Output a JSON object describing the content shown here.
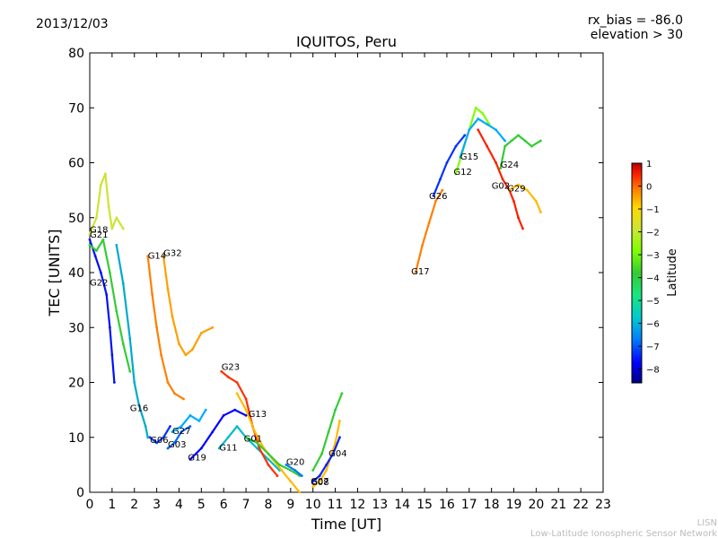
{
  "header": {
    "date": "2013/12/03",
    "title": "IQUITOS, Peru",
    "rx_bias": "rx_bias = -86.0",
    "elevation": "elevation > 30"
  },
  "footer": {
    "line1": "LISN",
    "line2": "Low-Latitude Ionospheric Sensor Network"
  },
  "colorbar": {
    "label": "Latitude",
    "ticks": [
      "1",
      "0",
      "−1",
      "−2",
      "−3",
      "−4",
      "−5",
      "−6",
      "−7",
      "−8"
    ],
    "tick_values": [
      1,
      0,
      -1,
      -2,
      -3,
      -4,
      -5,
      -6,
      -7,
      -8
    ],
    "range": [
      -8.6,
      1.0
    ],
    "colormap": [
      "#00007f",
      "#0000ff",
      "#007fff",
      "#00cccc",
      "#19e57f",
      "#33cc33",
      "#7fff00",
      "#cce533",
      "#ffd700",
      "#ff7f00",
      "#ff2000",
      "#b40000"
    ]
  },
  "chart_data": {
    "type": "scatter",
    "title": "IQUITOS, Peru",
    "xlabel": "Time [UT]",
    "ylabel": "TEC [UNITS]",
    "xlim": [
      0,
      23
    ],
    "ylim": [
      0,
      80
    ],
    "x_ticks": [
      "0",
      "1",
      "2",
      "3",
      "4",
      "5",
      "6",
      "7",
      "8",
      "9",
      "10",
      "11",
      "12",
      "13",
      "14",
      "15",
      "16",
      "17",
      "18",
      "19",
      "20",
      "21",
      "22",
      "23"
    ],
    "y_ticks": [
      "0",
      "10",
      "20",
      "30",
      "40",
      "50",
      "60",
      "70",
      "80"
    ],
    "grid": false,
    "series": [
      {
        "name": "G22",
        "color": "#0010ff",
        "points": [
          [
            0,
            46
          ],
          [
            0.25,
            43
          ],
          [
            0.5,
            40
          ],
          [
            0.75,
            36
          ],
          [
            0.9,
            30
          ],
          [
            1.0,
            25
          ],
          [
            1.1,
            20
          ]
        ]
      },
      {
        "name": "G18",
        "color": "#cce533",
        "points": [
          [
            0,
            47
          ],
          [
            0.3,
            50
          ],
          [
            0.5,
            56
          ],
          [
            0.7,
            58
          ],
          [
            0.85,
            52
          ],
          [
            1.0,
            48
          ],
          [
            1.2,
            50
          ],
          [
            1.5,
            48
          ]
        ]
      },
      {
        "name": "G21",
        "color": "#33cc33",
        "points": [
          [
            0,
            45
          ],
          [
            0.3,
            44
          ],
          [
            0.6,
            46
          ],
          [
            0.9,
            40
          ],
          [
            1.2,
            33
          ],
          [
            1.5,
            27
          ],
          [
            1.8,
            22
          ]
        ]
      },
      {
        "name": "G16",
        "color": "#00aacc",
        "points": [
          [
            1.2,
            45
          ],
          [
            1.5,
            38
          ],
          [
            1.8,
            28
          ],
          [
            2.0,
            20
          ],
          [
            2.2,
            16
          ],
          [
            2.5,
            12
          ],
          [
            2.6,
            10
          ]
        ]
      },
      {
        "name": "G14",
        "color": "#ff7f00",
        "points": [
          [
            2.6,
            43
          ],
          [
            2.8,
            36
          ],
          [
            3.0,
            30
          ],
          [
            3.2,
            25
          ],
          [
            3.5,
            20
          ],
          [
            3.8,
            18
          ],
          [
            4.2,
            17
          ]
        ]
      },
      {
        "name": "G32",
        "color": "#ff9f00",
        "points": [
          [
            3.3,
            43
          ],
          [
            3.5,
            37
          ],
          [
            3.7,
            32
          ],
          [
            4.0,
            27
          ],
          [
            4.3,
            25
          ],
          [
            4.6,
            26
          ],
          [
            5.0,
            29
          ],
          [
            5.5,
            30
          ]
        ]
      },
      {
        "name": "G06",
        "color": "#0033ff",
        "points": [
          [
            2.7,
            10
          ],
          [
            3.0,
            9
          ],
          [
            3.3,
            10
          ],
          [
            3.6,
            12
          ]
        ]
      },
      {
        "name": "G03",
        "color": "#0066ff",
        "points": [
          [
            3.5,
            8
          ],
          [
            3.8,
            9
          ],
          [
            4.1,
            11
          ],
          [
            4.5,
            12
          ]
        ]
      },
      {
        "name": "G27",
        "color": "#00aaff",
        "points": [
          [
            3.7,
            11
          ],
          [
            4.1,
            12
          ],
          [
            4.5,
            14
          ],
          [
            4.9,
            13
          ],
          [
            5.2,
            15
          ]
        ]
      },
      {
        "name": "G19",
        "color": "#0000ff",
        "points": [
          [
            4.5,
            6
          ],
          [
            5.0,
            8
          ],
          [
            5.5,
            11
          ],
          [
            6.0,
            14
          ],
          [
            6.5,
            15
          ],
          [
            7.0,
            14
          ]
        ]
      },
      {
        "name": "G11",
        "color": "#00bbcc",
        "points": [
          [
            5.8,
            8
          ],
          [
            6.2,
            10
          ],
          [
            6.6,
            12
          ],
          [
            7.0,
            10
          ],
          [
            7.5,
            8
          ],
          [
            8.0,
            6
          ],
          [
            8.5,
            4
          ]
        ]
      },
      {
        "name": "G23",
        "color": "#ff3000",
        "points": [
          [
            5.9,
            22
          ],
          [
            6.2,
            21
          ],
          [
            6.6,
            20
          ],
          [
            7.0,
            17
          ],
          [
            7.3,
            12
          ],
          [
            7.6,
            8
          ],
          [
            8.0,
            5
          ],
          [
            8.4,
            3
          ]
        ]
      },
      {
        "name": "G13",
        "color": "#ffbb00",
        "points": [
          [
            6.6,
            18
          ],
          [
            7.0,
            15
          ],
          [
            7.4,
            11
          ],
          [
            7.8,
            8
          ],
          [
            8.2,
            6
          ],
          [
            8.6,
            4
          ],
          [
            9.0,
            2
          ],
          [
            9.4,
            0
          ]
        ]
      },
      {
        "name": "G01",
        "color": "#33cc33",
        "points": [
          [
            7.0,
            10
          ],
          [
            7.5,
            9
          ],
          [
            8.0,
            7
          ],
          [
            8.5,
            5
          ],
          [
            9.0,
            4
          ],
          [
            9.4,
            3
          ]
        ]
      },
      {
        "name": "G20",
        "color": "#0077ff",
        "points": [
          [
            8.8,
            5
          ],
          [
            9.2,
            4
          ],
          [
            9.5,
            3
          ]
        ]
      },
      {
        "name": "G07",
        "color": "#ffbb00",
        "points": [
          [
            10.0,
            1
          ],
          [
            10.3,
            2
          ],
          [
            10.6,
            4
          ],
          [
            11.0,
            9
          ],
          [
            11.2,
            13
          ]
        ]
      },
      {
        "name": "G08",
        "color": "#0022ff",
        "points": [
          [
            10.0,
            2
          ],
          [
            10.3,
            3
          ],
          [
            10.6,
            5
          ],
          [
            10.9,
            7
          ],
          [
            11.2,
            10
          ]
        ]
      },
      {
        "name": "G04",
        "color": "#33cc33",
        "points": [
          [
            10.0,
            4
          ],
          [
            10.4,
            7
          ],
          [
            10.7,
            11
          ],
          [
            11.0,
            15
          ],
          [
            11.3,
            18
          ]
        ]
      },
      {
        "name": "G17",
        "color": "#ff7f00",
        "points": [
          [
            14.6,
            40
          ],
          [
            14.9,
            45
          ],
          [
            15.2,
            49
          ],
          [
            15.5,
            53
          ],
          [
            15.8,
            55
          ]
        ]
      },
      {
        "name": "G26",
        "color": "#0033ff",
        "points": [
          [
            15.4,
            54
          ],
          [
            15.7,
            57
          ],
          [
            16.0,
            60
          ],
          [
            16.4,
            63
          ],
          [
            16.8,
            65
          ]
        ]
      },
      {
        "name": "G12",
        "color": "#7fff00",
        "points": [
          [
            16.4,
            58
          ],
          [
            16.7,
            62
          ],
          [
            17.0,
            66
          ],
          [
            17.3,
            70
          ],
          [
            17.6,
            69
          ],
          [
            17.9,
            67
          ]
        ]
      },
      {
        "name": "G15",
        "color": "#00aaff",
        "points": [
          [
            16.6,
            61
          ],
          [
            17.0,
            66
          ],
          [
            17.4,
            68
          ],
          [
            17.8,
            67
          ],
          [
            18.2,
            66
          ],
          [
            18.6,
            64
          ]
        ]
      },
      {
        "name": "G24",
        "color": "#33cc33",
        "points": [
          [
            18.4,
            59
          ],
          [
            18.6,
            63
          ],
          [
            18.9,
            64
          ],
          [
            19.2,
            65
          ],
          [
            19.5,
            64
          ],
          [
            19.8,
            63
          ],
          [
            20.2,
            64
          ]
        ]
      },
      {
        "name": "G02",
        "color": "#ff2000",
        "points": [
          [
            17.4,
            66
          ],
          [
            17.8,
            63
          ],
          [
            18.2,
            60
          ],
          [
            18.5,
            57
          ],
          [
            18.8,
            55
          ],
          [
            19.0,
            53
          ],
          [
            19.2,
            50
          ],
          [
            19.4,
            48
          ]
        ]
      },
      {
        "name": "G29",
        "color": "#ffbb00",
        "points": [
          [
            18.8,
            55
          ],
          [
            19.2,
            56
          ],
          [
            19.6,
            55
          ],
          [
            20.0,
            53
          ],
          [
            20.2,
            51
          ]
        ]
      }
    ],
    "labels": [
      {
        "text": "G18",
        "x": 0.0,
        "y": 47.3
      },
      {
        "text": "G21",
        "x": 0.0,
        "y": 46.4
      },
      {
        "text": "G22",
        "x": 0.0,
        "y": 37.6
      },
      {
        "text": "G14",
        "x": 2.6,
        "y": 42.5
      },
      {
        "text": "G32",
        "x": 3.3,
        "y": 43.0
      },
      {
        "text": "G16",
        "x": 1.8,
        "y": 14.8
      },
      {
        "text": "G06",
        "x": 2.7,
        "y": 9.0
      },
      {
        "text": "G03",
        "x": 3.5,
        "y": 8.2
      },
      {
        "text": "G27",
        "x": 3.7,
        "y": 10.6
      },
      {
        "text": "G19",
        "x": 4.4,
        "y": 5.8
      },
      {
        "text": "G11",
        "x": 5.8,
        "y": 7.6
      },
      {
        "text": "G23",
        "x": 5.9,
        "y": 22.3
      },
      {
        "text": "G13",
        "x": 7.1,
        "y": 13.7
      },
      {
        "text": "G01",
        "x": 6.9,
        "y": 9.2
      },
      {
        "text": "G20",
        "x": 8.8,
        "y": 5.0
      },
      {
        "text": "G08",
        "x": 9.9,
        "y": 1.3
      },
      {
        "text": "G07",
        "x": 9.9,
        "y": 1.5
      },
      {
        "text": "G04",
        "x": 10.7,
        "y": 6.5
      },
      {
        "text": "G17",
        "x": 14.4,
        "y": 39.7
      },
      {
        "text": "G26",
        "x": 15.2,
        "y": 53.4
      },
      {
        "text": "G12",
        "x": 16.3,
        "y": 57.8
      },
      {
        "text": "G15",
        "x": 16.6,
        "y": 60.6
      },
      {
        "text": "G24",
        "x": 18.4,
        "y": 59.1
      },
      {
        "text": "G02",
        "x": 18.0,
        "y": 55.3
      },
      {
        "text": "G29",
        "x": 18.7,
        "y": 54.8
      }
    ]
  }
}
